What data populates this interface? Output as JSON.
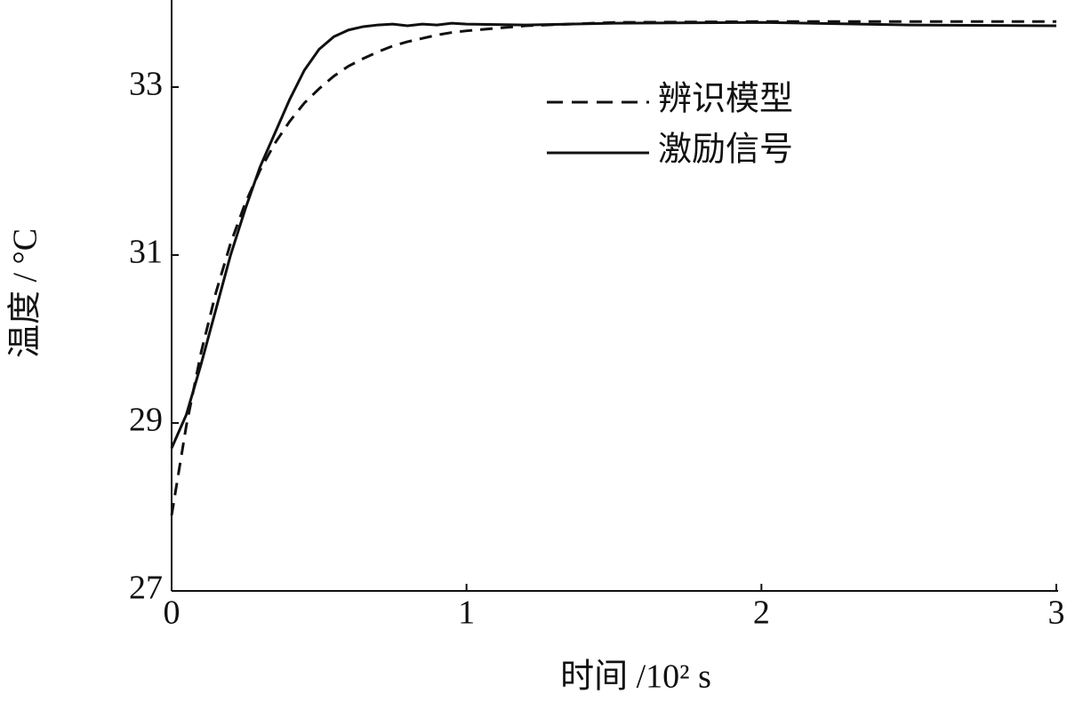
{
  "chart_data": {
    "type": "line",
    "xlabel": "时间 /10² s",
    "ylabel": "温度 / °C",
    "x": [
      0,
      0.05,
      0.1,
      0.15,
      0.2,
      0.25,
      0.3,
      0.35,
      0.4,
      0.45,
      0.5,
      0.55,
      0.6,
      0.65,
      0.7,
      0.75,
      0.8,
      0.85,
      0.9,
      0.95,
      1.0,
      1.2,
      1.5,
      2,
      2.5,
      3
    ],
    "series": [
      {
        "name": "辨识模型",
        "color": "#111111",
        "dash": true,
        "values": [
          27.9,
          28.97,
          29.84,
          30.55,
          31.14,
          31.62,
          32.01,
          32.33,
          32.59,
          32.81,
          32.98,
          33.13,
          33.25,
          33.34,
          33.42,
          33.49,
          33.54,
          33.58,
          33.62,
          33.65,
          33.67,
          33.73,
          33.77,
          33.78,
          33.78,
          33.78
        ]
      },
      {
        "name": "激励信号",
        "color": "#111111",
        "dash": false,
        "values": [
          28.7,
          29.1,
          29.7,
          30.35,
          31.0,
          31.55,
          32.05,
          32.45,
          32.85,
          33.2,
          33.45,
          33.6,
          33.68,
          33.72,
          33.74,
          33.75,
          33.73,
          33.75,
          33.74,
          33.76,
          33.75,
          33.74,
          33.76,
          33.77,
          33.74,
          33.73
        ]
      }
    ],
    "xlim": [
      0,
      3
    ],
    "xticks": [
      0,
      1,
      2,
      3
    ],
    "ylim": [
      27,
      34
    ],
    "yticks": [
      27,
      29,
      31,
      33
    ],
    "legend": "upper-right"
  }
}
